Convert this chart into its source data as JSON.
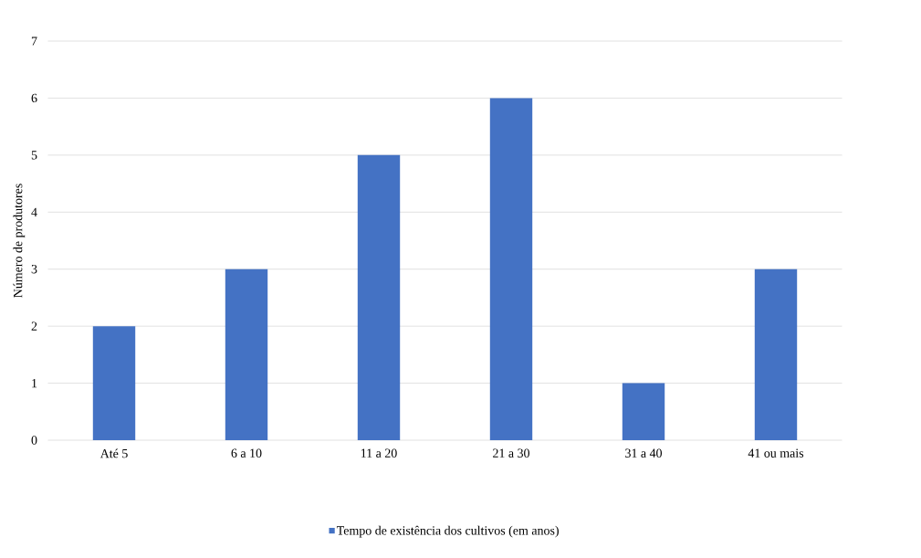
{
  "chart_data": {
    "type": "bar",
    "ylabel": "Número de produtores",
    "categories": [
      "Até 5",
      "6 a 10",
      "11 a 20",
      "21 a 30",
      "31 a 40",
      "41 ou mais"
    ],
    "series": [
      {
        "name": "Tempo de existência dos cultivos (em anos)",
        "color": "#4472c4",
        "values": [
          2,
          3,
          5,
          6,
          1,
          3
        ]
      }
    ],
    "ylim": [
      0,
      7
    ],
    "yticks": [
      0,
      1,
      2,
      3,
      4,
      5,
      6,
      7
    ],
    "grid": "y",
    "legend": "bottom"
  }
}
